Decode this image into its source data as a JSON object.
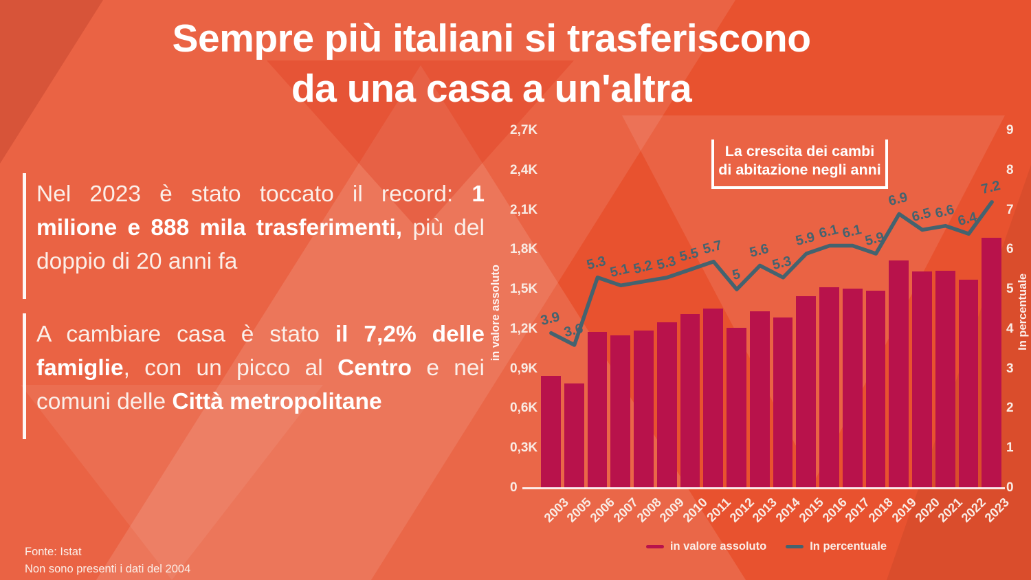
{
  "page": {
    "title_line1": "Sempre più italiani si trasferiscono",
    "title_line2": "da una casa a un'altra",
    "footer_line1": "Fonte: Istat",
    "footer_line2": "Non sono presenti i dati del 2004"
  },
  "paragraphs": [
    {
      "segments": [
        {
          "text": "Nel 2023 è stato toccato il record: ",
          "bold": false
        },
        {
          "text": "1 milione e 888 mila trasferimenti,",
          "bold": true
        },
        {
          "text": " più del doppio di 20 anni fa",
          "bold": false
        }
      ]
    },
    {
      "segments": [
        {
          "text": "A cambiare casa è stato ",
          "bold": false
        },
        {
          "text": "il 7,2% delle famiglie",
          "bold": true
        },
        {
          "text": ", con un picco al ",
          "bold": false
        },
        {
          "text": "Centro",
          "bold": true
        },
        {
          "text": " e nei comuni delle ",
          "bold": false
        },
        {
          "text": "Città metropolitane",
          "bold": true
        }
      ]
    }
  ],
  "colors": {
    "background": "#E8522F",
    "bar": "#B8124B",
    "line": "#44636F",
    "text": "#FFFFFF"
  },
  "chart_data": {
    "type": "bar",
    "title": "La crescita dei cambi di abitazione negli anni",
    "categories": [
      "2003",
      "2005",
      "2006",
      "2007",
      "2008",
      "2009",
      "2010",
      "2011",
      "2012",
      "2013",
      "2014",
      "2015",
      "2016",
      "2017",
      "2018",
      "2019",
      "2020",
      "2021",
      "2022",
      "2023"
    ],
    "series": [
      {
        "name": "in valore assoluto",
        "type": "bar",
        "axis": "left",
        "color": "#B8124B",
        "values": [
          845,
          790,
          1180,
          1155,
          1190,
          1250,
          1315,
          1355,
          1210,
          1335,
          1290,
          1450,
          1515,
          1505,
          1490,
          1720,
          1635,
          1640,
          1575,
          1888
        ]
      },
      {
        "name": "In percentuale",
        "type": "line",
        "axis": "right",
        "color": "#44636F",
        "values": [
          3.9,
          3.6,
          5.3,
          5.1,
          5.2,
          5.3,
          5.5,
          5.7,
          5,
          5.6,
          5.3,
          5.9,
          6.1,
          6.1,
          5.9,
          6.9,
          6.5,
          6.6,
          6.4,
          7.2
        ]
      }
    ],
    "point_labels": [
      "3.9",
      "3.6",
      "5.3",
      "5.1",
      "5.2",
      "5.3",
      "5.5",
      "5.7",
      "5",
      "5.6",
      "5.3",
      "5.9",
      "6.1",
      "6.1",
      "5.9",
      "6.9",
      "6.5",
      "6.6",
      "6.4",
      "7.2"
    ],
    "left_axis": {
      "label": "in valore assoluto",
      "max": 2700,
      "ticks": [
        "0",
        "0,3K",
        "0,6K",
        "0,9K",
        "1,2K",
        "1,5K",
        "1,8K",
        "2,1K",
        "2,4K",
        "2,7K"
      ]
    },
    "right_axis": {
      "label": "In percentuale",
      "max": 9,
      "ticks": [
        "0",
        "1",
        "2",
        "3",
        "4",
        "5",
        "6",
        "7",
        "8",
        "9"
      ]
    },
    "legend": [
      {
        "label": "in valore assoluto",
        "color": "#B8124B"
      },
      {
        "label": "In percentuale",
        "color": "#44636F"
      }
    ],
    "grid": false,
    "legend_position": "bottom"
  }
}
